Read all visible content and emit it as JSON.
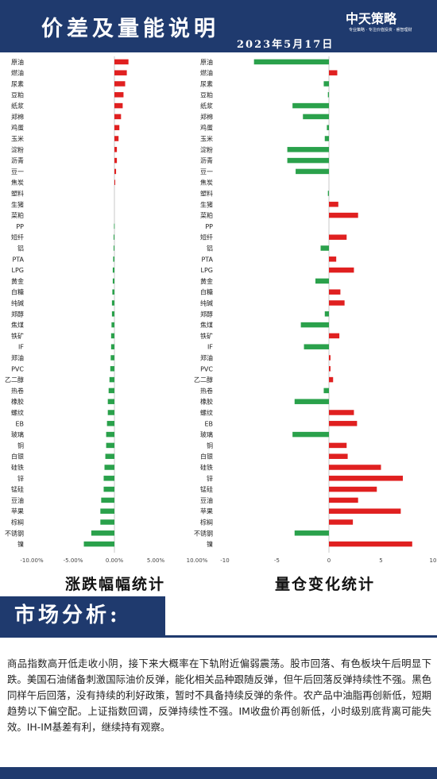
{
  "header": {
    "title": "价差及量能说明",
    "date": "2023年5月17日",
    "logo_text": "中天策略",
    "logo_sub": "专业策略 · 专注价值投资 · 睿智理财"
  },
  "chart_data": [
    {
      "type": "bar",
      "orientation": "horizontal",
      "caption": "涨跌幅幅统计",
      "categories": [
        "原油",
        "燃油",
        "尿素",
        "豆粕",
        "纸浆",
        "郑棉",
        "鸡蛋",
        "玉米",
        "淀粉",
        "沥青",
        "豆一",
        "焦炭",
        "塑料",
        "生猪",
        "菜粕",
        "PP",
        "短纤",
        "铝",
        "PTA",
        "LPG",
        "黄金",
        "白糖",
        "纯碱",
        "郑醇",
        "焦煤",
        "铁矿",
        "IF",
        "郑油",
        "PVC",
        "乙二醇",
        "热卷",
        "橡胶",
        "螺纹",
        "EB",
        "玻璃",
        "铜",
        "白银",
        "硅铁",
        "锌",
        "锰硅",
        "豆油",
        "苹果",
        "棕榈",
        "不锈钢",
        "镍"
      ],
      "values": [
        1.7,
        1.5,
        1.3,
        1.1,
        1.0,
        0.8,
        0.6,
        0.5,
        0.3,
        0.3,
        0.2,
        0.1,
        0.0,
        0.0,
        0.0,
        -0.05,
        -0.1,
        -0.1,
        -0.15,
        -0.2,
        -0.2,
        -0.25,
        -0.3,
        -0.3,
        -0.35,
        -0.4,
        -0.4,
        -0.45,
        -0.5,
        -0.6,
        -0.7,
        -0.8,
        -0.8,
        -0.9,
        -1.0,
        -1.0,
        -1.1,
        -1.2,
        -1.3,
        -1.3,
        -1.6,
        -1.7,
        -1.7,
        -2.8,
        -3.7
      ],
      "xlim": [
        -10,
        10
      ],
      "xticks": [
        "-10.00%",
        "-5.00%",
        "0.00%",
        "5.00%",
        "10.00%"
      ],
      "colors": {
        "positive": "#e02020",
        "negative": "#2aa14b"
      }
    },
    {
      "type": "bar",
      "orientation": "horizontal",
      "caption": "量仓变化统计",
      "categories": [
        "原油",
        "燃油",
        "尿素",
        "豆粕",
        "纸浆",
        "郑棉",
        "鸡蛋",
        "玉米",
        "淀粉",
        "沥青",
        "豆一",
        "焦炭",
        "塑料",
        "生猪",
        "菜粕",
        "PP",
        "短纤",
        "铝",
        "PTA",
        "LPG",
        "黄金",
        "白糖",
        "纯碱",
        "郑醇",
        "焦煤",
        "铁矿",
        "IF",
        "郑油",
        "PVC",
        "乙二醇",
        "热卷",
        "橡胶",
        "螺纹",
        "EB",
        "玻璃",
        "铜",
        "白银",
        "硅铁",
        "锌",
        "锰硅",
        "豆油",
        "苹果",
        "棕榈",
        "不锈钢",
        "镍"
      ],
      "values": [
        -7.2,
        0.8,
        -0.5,
        -0.1,
        -3.5,
        -2.5,
        -0.2,
        -0.4,
        -4.0,
        -4.0,
        -3.2,
        0.0,
        -0.1,
        0.9,
        2.8,
        0.0,
        1.7,
        -0.8,
        0.7,
        2.4,
        -1.3,
        1.1,
        1.5,
        -0.4,
        -2.7,
        1.0,
        -2.4,
        0.15,
        0.15,
        0.4,
        -0.5,
        -3.3,
        2.4,
        2.7,
        -3.5,
        1.7,
        1.8,
        5.0,
        7.1,
        4.6,
        2.8,
        6.9,
        2.3,
        -3.3,
        8.0
      ],
      "xlim": [
        -10,
        10
      ],
      "xticks": [
        "-10",
        "-5",
        "0",
        "5",
        "10"
      ],
      "colors": {
        "positive": "#e02020",
        "negative": "#2aa14b"
      }
    }
  ],
  "analysis": {
    "title": "市场分析:",
    "text": "商品指数高开低走收小阴，接下来大概率在下轨附近偏弱震荡。股市回落、有色板块午后明显下跌。美国石油储备刺激国际油价反弹，能化相关品种跟随反弹，但午后回落反弹持续性不强。黑色同样午后回落，没有持续的利好政策，暂时不具备持续反弹的条件。农产品中油脂再创新低，短期趋势以下偏空配。上证指数回调，反弹持续性不强。IM收盘价再创新低，小时级别底背离可能失效。IH-IM基差有利，继续持有观察。"
  }
}
